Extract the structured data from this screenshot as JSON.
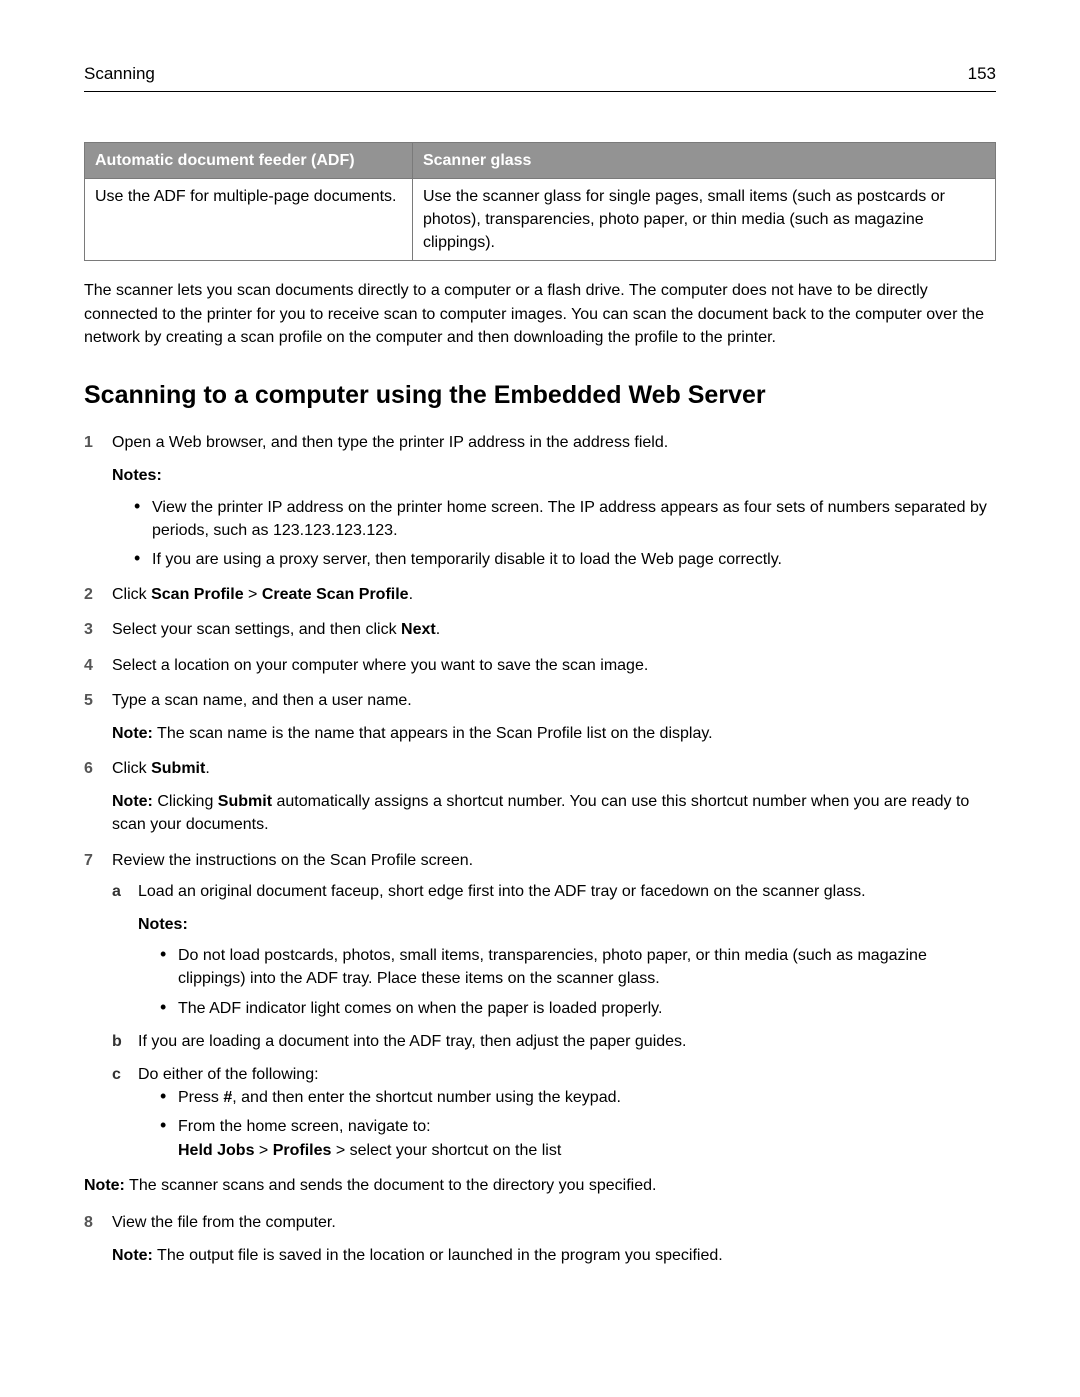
{
  "header": {
    "section": "Scanning",
    "page_number": "153"
  },
  "table": {
    "head": {
      "adf": "Automatic document feeder (ADF)",
      "glass": "Scanner glass"
    },
    "row": {
      "adf": "Use the ADF for multiple‑page documents.",
      "glass": "Use the scanner glass for single pages, small items (such as postcards or photos), transparencies, photo paper, or thin media (such as magazine clippings)."
    }
  },
  "intro": "The scanner lets you scan documents directly to a computer or a flash drive. The computer does not have to be directly connected to the printer for you to receive scan to computer images. You can scan the document back to the computer over the network by creating a scan profile on the computer and then downloading the profile to the printer.",
  "heading": "Scanning to a computer using the Embedded Web Server",
  "steps": {
    "s1": {
      "num": "1",
      "text": "Open a Web browser, and then type the printer IP address in the address field.",
      "notes_label": "Notes:",
      "bullets": [
        "View the printer IP address on the printer home screen. The IP address appears as four sets of numbers separated by periods, such as 123.123.123.123.",
        "If you are using a proxy server, then temporarily disable it to load the Web page correctly."
      ]
    },
    "s2": {
      "num": "2",
      "pre": "Click ",
      "b1": "Scan Profile",
      "mid": " > ",
      "b2": "Create Scan Profile",
      "post": "."
    },
    "s3": {
      "num": "3",
      "pre": "Select your scan settings, and then click ",
      "b1": "Next",
      "post": "."
    },
    "s4": {
      "num": "4",
      "text": "Select a location on your computer where you want to save the scan image."
    },
    "s5": {
      "num": "5",
      "text": "Type a scan name, and then a user name.",
      "note_label": "Note:",
      "note_text": " The scan name is the name that appears in the Scan Profile list on the display."
    },
    "s6": {
      "num": "6",
      "pre": "Click ",
      "b1": "Submit",
      "post": ".",
      "note_label": "Note:",
      "note_pre": " Clicking ",
      "note_b": "Submit",
      "note_post": " automatically assigns a shortcut number. You can use this shortcut number when you are ready to scan your documents."
    },
    "s7": {
      "num": "7",
      "text": "Review the instructions on the Scan Profile screen.",
      "a": {
        "letter": "a",
        "text": "Load an original document faceup, short edge first into the ADF tray or facedown on the scanner glass.",
        "notes_label": "Notes:",
        "bullets": [
          "Do not load postcards, photos, small items, transparencies, photo paper, or thin media (such as magazine clippings) into the ADF tray. Place these items on the scanner glass.",
          "The ADF indicator light comes on when the paper is loaded properly."
        ]
      },
      "b": {
        "letter": "b",
        "text": "If you are loading a document into the ADF tray, then adjust the paper guides."
      },
      "c": {
        "letter": "c",
        "text": "Do either of the following:",
        "bullet1_pre": "Press ",
        "bullet1_b": "#",
        "bullet1_post": ", and then enter the shortcut number using the keypad.",
        "bullet2_line1": "From the home screen, navigate to:",
        "bullet2_b1": "Held Jobs",
        "bullet2_mid1": " > ",
        "bullet2_b2": "Profiles",
        "bullet2_post": " > select your shortcut on the list"
      }
    },
    "outer_note": {
      "label": "Note:",
      "text": " The scanner scans and sends the document to the directory you specified."
    },
    "s8": {
      "num": "8",
      "text": "View the file from the computer.",
      "note_label": "Note:",
      "note_text": " The output file is saved in the location or launched in the program you specified."
    }
  }
}
